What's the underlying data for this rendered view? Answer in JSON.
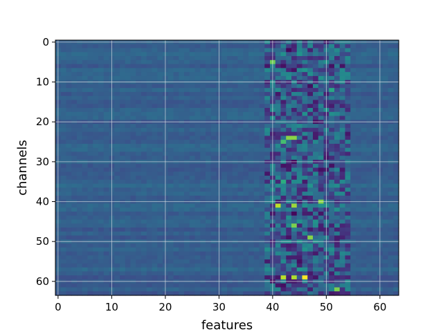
{
  "chart_data": {
    "type": "heatmap",
    "title": "",
    "xlabel": "features",
    "ylabel": "channels",
    "n_cols": 64,
    "n_rows": 64,
    "x_range": [
      -0.5,
      63.5
    ],
    "y_range": [
      -0.5,
      63.5
    ],
    "y_inverted": true,
    "colormap": "viridis",
    "value_range": [
      0,
      1
    ],
    "grid": true,
    "legend": "none",
    "x_ticks": [
      {
        "value": 0,
        "label": "0"
      },
      {
        "value": 10,
        "label": "10"
      },
      {
        "value": 20,
        "label": "20"
      },
      {
        "value": 30,
        "label": "30"
      },
      {
        "value": 40,
        "label": "40"
      },
      {
        "value": 50,
        "label": "50"
      },
      {
        "value": 60,
        "label": "60"
      }
    ],
    "y_ticks": [
      {
        "value": 0,
        "label": "0"
      },
      {
        "value": 10,
        "label": "10"
      },
      {
        "value": 20,
        "label": "20"
      },
      {
        "value": 30,
        "label": "30"
      },
      {
        "value": 40,
        "label": "40"
      },
      {
        "value": 50,
        "label": "50"
      },
      {
        "value": 60,
        "label": "60"
      }
    ],
    "base_level": 0.3,
    "active_band": {
      "x_from": 39,
      "x_to": 54
    },
    "hotspots": [
      {
        "x": 40,
        "y": 5,
        "v": 0.78
      },
      {
        "x": 43,
        "y": 2,
        "v": 0.02
      },
      {
        "x": 44,
        "y": 7,
        "v": 0.05
      },
      {
        "x": 47,
        "y": 11,
        "v": 0.04
      },
      {
        "x": 51,
        "y": 12,
        "v": 0.6
      },
      {
        "x": 43,
        "y": 24,
        "v": 0.82
      },
      {
        "x": 44,
        "y": 24,
        "v": 0.82
      },
      {
        "x": 42,
        "y": 25,
        "v": 0.7
      },
      {
        "x": 44,
        "y": 30,
        "v": 0.03
      },
      {
        "x": 42,
        "y": 35,
        "v": 0.62
      },
      {
        "x": 41,
        "y": 41,
        "v": 0.9
      },
      {
        "x": 44,
        "y": 41,
        "v": 0.85
      },
      {
        "x": 49,
        "y": 40,
        "v": 0.82
      },
      {
        "x": 44,
        "y": 43,
        "v": 0.02
      },
      {
        "x": 44,
        "y": 46,
        "v": 0.8
      },
      {
        "x": 47,
        "y": 49,
        "v": 0.82
      },
      {
        "x": 45,
        "y": 55,
        "v": 0.04
      },
      {
        "x": 42,
        "y": 59,
        "v": 0.9
      },
      {
        "x": 46,
        "y": 59,
        "v": 1.0
      },
      {
        "x": 44,
        "y": 59,
        "v": 0.88
      },
      {
        "x": 52,
        "y": 62,
        "v": 0.8
      }
    ]
  },
  "colors": {
    "background": "#ffffff",
    "grid": "#e8e8e8",
    "axis": "#000000",
    "viridis_stops": [
      "#440154",
      "#482878",
      "#3e4989",
      "#31688e",
      "#26828e",
      "#1f9e89",
      "#35b779",
      "#6ece58",
      "#b5de2b",
      "#fde725"
    ]
  }
}
